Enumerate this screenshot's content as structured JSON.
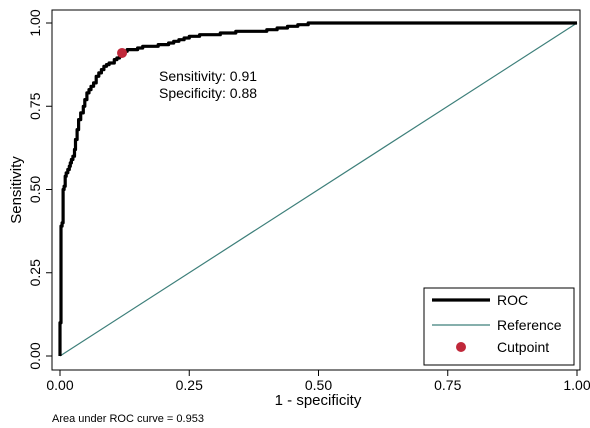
{
  "chart_data": {
    "type": "line",
    "xlabel": "1 - specificity",
    "ylabel": "Sensitivity",
    "xlim": [
      0,
      1
    ],
    "ylim": [
      0,
      1
    ],
    "x_ticks": [
      "0.00",
      "0.25",
      "0.50",
      "0.75",
      "1.00"
    ],
    "y_ticks": [
      "0.00",
      "0.25",
      "0.50",
      "0.75",
      "1.00"
    ],
    "grid": false,
    "legend_position": "bottom-right",
    "series": [
      {
        "name": "ROC",
        "color": "#000000",
        "x": [
          0,
          0.002,
          0.004,
          0.006,
          0.008,
          0.01,
          0.012,
          0.015,
          0.018,
          0.02,
          0.022,
          0.025,
          0.028,
          0.03,
          0.033,
          0.036,
          0.04,
          0.045,
          0.048,
          0.052,
          0.056,
          0.06,
          0.065,
          0.07,
          0.075,
          0.08,
          0.085,
          0.09,
          0.095,
          0.1,
          0.105,
          0.11,
          0.115,
          0.118,
          0.12,
          0.13,
          0.14,
          0.15,
          0.16,
          0.17,
          0.18,
          0.19,
          0.2,
          0.21,
          0.22,
          0.23,
          0.24,
          0.25,
          0.27,
          0.29,
          0.31,
          0.34,
          0.37,
          0.4,
          0.42,
          0.44,
          0.46,
          0.48,
          0.5,
          0.52,
          0.6,
          0.7,
          0.8,
          0.9,
          1.0
        ],
        "y": [
          0,
          0.1,
          0.39,
          0.4,
          0.5,
          0.51,
          0.54,
          0.55,
          0.56,
          0.57,
          0.58,
          0.59,
          0.6,
          0.62,
          0.65,
          0.68,
          0.71,
          0.73,
          0.75,
          0.77,
          0.79,
          0.8,
          0.81,
          0.82,
          0.84,
          0.85,
          0.86,
          0.87,
          0.875,
          0.88,
          0.88,
          0.89,
          0.895,
          0.9,
          0.91,
          0.915,
          0.92,
          0.92,
          0.925,
          0.93,
          0.93,
          0.93,
          0.935,
          0.935,
          0.94,
          0.945,
          0.95,
          0.955,
          0.96,
          0.965,
          0.965,
          0.97,
          0.975,
          0.975,
          0.98,
          0.985,
          0.99,
          0.995,
          1.0,
          1.0,
          1.0,
          1.0,
          1.0,
          1.0,
          1.0
        ]
      },
      {
        "name": "Reference",
        "color": "#3d7f7a",
        "x": [
          0,
          1
        ],
        "y": [
          0,
          1
        ]
      }
    ],
    "cutpoint": {
      "name": "Cutpoint",
      "color": "#c0283a",
      "x": 0.12,
      "y": 0.91
    },
    "annotation": {
      "sensitivity_text": "Sensitivity: 0.91",
      "specificity_text": "Specificity: 0.88"
    },
    "note": "Area under ROC curve = 0.953"
  }
}
